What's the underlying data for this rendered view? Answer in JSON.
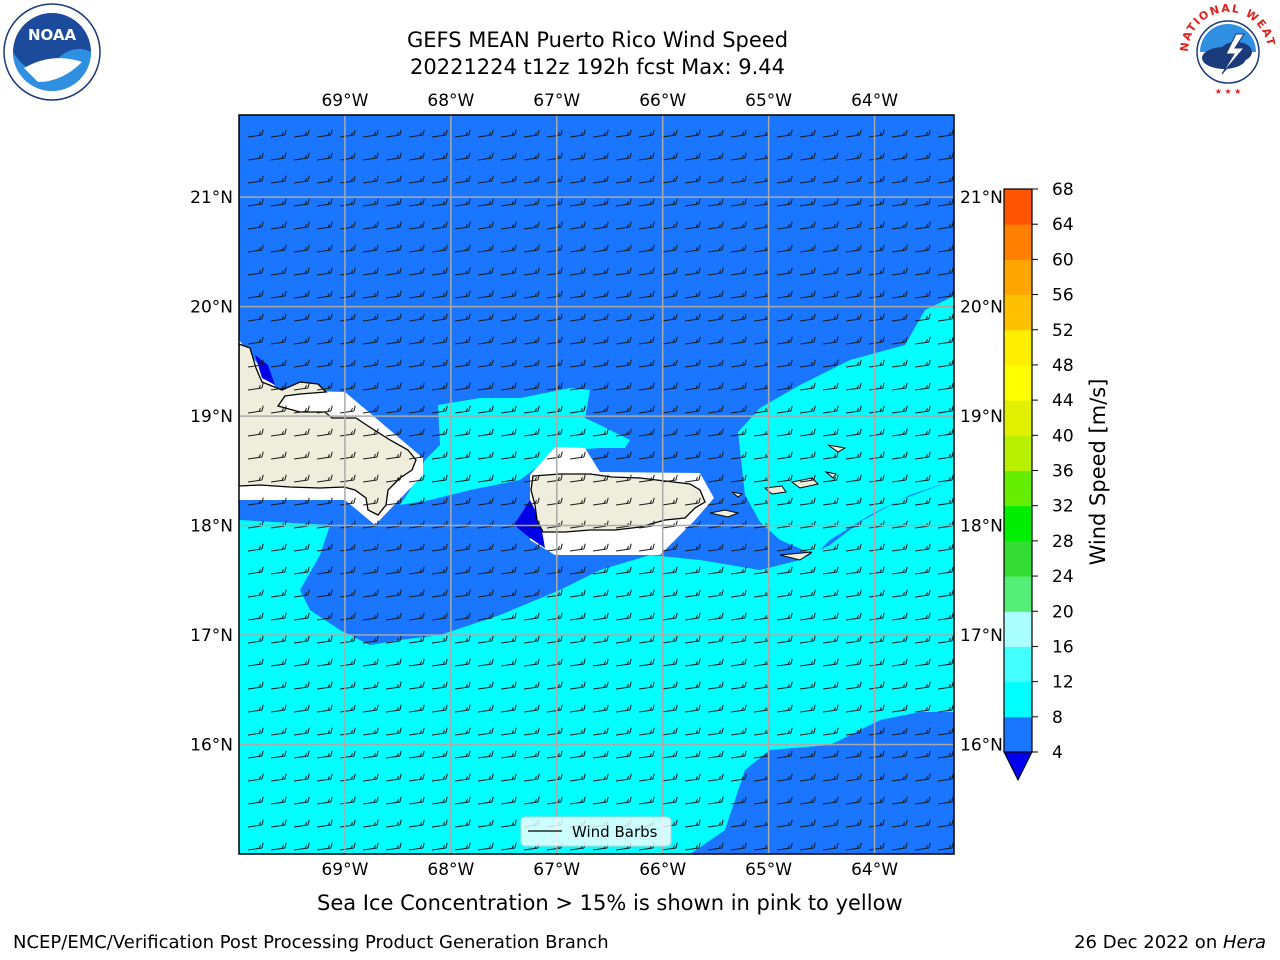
{
  "title": {
    "line1": "GEFS MEAN Puerto Rico Wind Speed",
    "line2": "20221224 t12z 192h fcst   Max: 9.44"
  },
  "map": {
    "lon_ticks": [
      {
        "value": -69,
        "label": "69°W"
      },
      {
        "value": -68,
        "label": "68°W"
      },
      {
        "value": -67,
        "label": "67°W"
      },
      {
        "value": -66,
        "label": "66°W"
      },
      {
        "value": -65,
        "label": "65°W"
      },
      {
        "value": -64,
        "label": "64°W"
      }
    ],
    "lat_ticks": [
      {
        "value": 21,
        "label": "21°N"
      },
      {
        "value": 20,
        "label": "20°N"
      },
      {
        "value": 19,
        "label": "19°N"
      },
      {
        "value": 18,
        "label": "18°N"
      },
      {
        "value": 17,
        "label": "17°N"
      },
      {
        "value": 16,
        "label": "16°N"
      }
    ],
    "lon_range": [
      -70,
      -63.25
    ],
    "lat_range": [
      15,
      21.75
    ],
    "grid": true,
    "field_colors": {
      "4-8": "#1a75ff",
      "8-12": "#00ffff",
      "lt4": "#0000e6",
      "land": "#efeedc"
    }
  },
  "legend": {
    "label": "Wind Barbs",
    "position": "lower-center"
  },
  "colorbar": {
    "label": "Wind Speed [m/s]",
    "ticks": [
      "4",
      "8",
      "12",
      "16",
      "20",
      "24",
      "28",
      "32",
      "36",
      "40",
      "44",
      "48",
      "52",
      "56",
      "60",
      "64",
      "68"
    ],
    "colors": [
      "#1a75ff",
      "#00ffff",
      "#44ffff",
      "#aaffff",
      "#55ee77",
      "#33dd33",
      "#00ee00",
      "#66ee00",
      "#b8f000",
      "#e0f000",
      "#ffff00",
      "#ffee00",
      "#ffc000",
      "#ffa500",
      "#ff8000",
      "#ff5500",
      "#ff3300",
      "#ff0000"
    ],
    "under_color": "#0000ee"
  },
  "footer": {
    "note": "Sea Ice Concentration > 15% is shown in pink to yellow",
    "left": "NCEP/EMC/Verification Post Processing Product Generation Branch",
    "right_prefix": "26 Dec 2022 on ",
    "right_machine": "Hera"
  },
  "logos": {
    "noaa": "NOAA",
    "nws": "NATIONAL WEATHER SERVICE"
  }
}
